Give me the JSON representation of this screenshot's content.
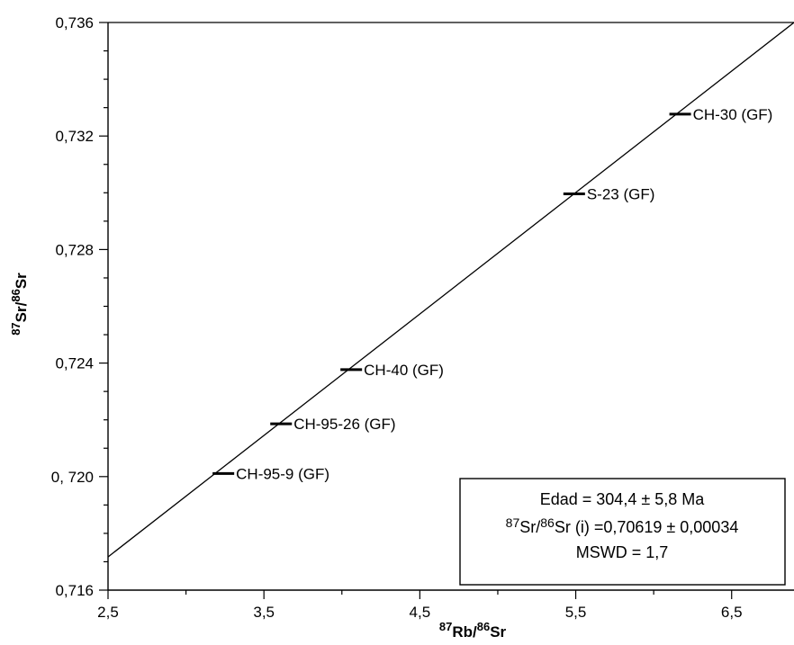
{
  "chart_data": {
    "type": "scatter",
    "xlabel": {
      "sup1": "87",
      "base1": "Rb",
      "sep": "/",
      "sup2": "86",
      "base2": "Sr"
    },
    "ylabel": {
      "sup1": "87",
      "base1": "Sr",
      "sep": "/",
      "sup2": "86",
      "base2": "Sr"
    },
    "xlim": [
      2.5,
      6.9
    ],
    "ylim": [
      0.716,
      0.736
    ],
    "x_ticks": [
      2.5,
      3.5,
      4.5,
      5.5,
      6.5
    ],
    "x_tick_labels": [
      "2,5",
      "3,5",
      "4,5",
      "5,5",
      "6,5"
    ],
    "y_ticks": [
      0.716,
      0.72,
      0.724,
      0.728,
      0.732,
      0.736
    ],
    "y_tick_labels": [
      "0,716",
      "0, 720",
      "0,724",
      "0,728",
      "0,732",
      "0,736"
    ],
    "points": [
      {
        "label": "CH-95-9 (GF)",
        "x": 3.24,
        "y": 0.72011
      },
      {
        "label": "CH-95-26 (GF)",
        "x": 3.61,
        "y": 0.72186
      },
      {
        "label": "CH-40 (GF)",
        "x": 4.06,
        "y": 0.72377
      },
      {
        "label": "S-23 (GF)",
        "x": 5.49,
        "y": 0.72996
      },
      {
        "label": "CH-30 (GF)",
        "x": 6.17,
        "y": 0.73277
      }
    ],
    "regression_line": {
      "x1": 2.5,
      "y1": 0.71717,
      "x2": 6.9,
      "y2": 0.736
    },
    "grid": false,
    "annotation_box": {
      "line1": "Edad = 304,4 ± 5,8 Ma",
      "line2": {
        "sup1": "87",
        "base1": "Sr",
        "sep": "/",
        "sup2": "86",
        "base2": "Sr",
        "rest": " (i) =0,70619 ± 0,00034"
      },
      "line3": "MSWD = 1,7",
      "placement": "bottom-right"
    }
  }
}
